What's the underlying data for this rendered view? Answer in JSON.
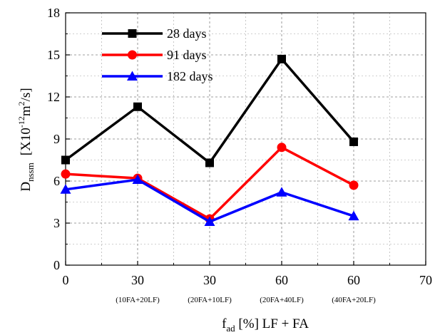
{
  "chart_data": {
    "type": "line",
    "x_tick_labels": [
      "0",
      "30",
      "30",
      "60",
      "60",
      "70"
    ],
    "x_sub_labels": [
      "",
      "(10FA+20LF)",
      "(20FA+10LF)",
      "(20FA+40LF)",
      "(40FA+20LF)",
      ""
    ],
    "x_positions": [
      0,
      1,
      2,
      3,
      4
    ],
    "xlim": [
      0,
      5
    ],
    "ylim": [
      0,
      18
    ],
    "y_ticks": [
      0,
      3,
      6,
      9,
      12,
      15,
      18
    ],
    "grid": true,
    "grid_style": "dashed",
    "legend_position": "top-left",
    "series": [
      {
        "name": "28 days",
        "color": "#000000",
        "marker": "square",
        "values": [
          7.5,
          11.3,
          7.3,
          14.7,
          8.8
        ]
      },
      {
        "name": "91 days",
        "color": "#ff0000",
        "marker": "circle",
        "values": [
          6.5,
          6.2,
          3.3,
          8.4,
          5.7
        ]
      },
      {
        "name": "182 days",
        "color": "#0000ff",
        "marker": "triangle",
        "values": [
          5.4,
          6.1,
          3.1,
          5.2,
          3.5
        ]
      }
    ],
    "ylabel": {
      "symbol": "D",
      "symbol_sub": "nssm",
      "unit_open": "[X10",
      "unit_exp": "-12",
      "unit_mid": "m",
      "unit_exp2": "2",
      "unit_close": "/s]"
    },
    "xlabel": {
      "symbol": "f",
      "symbol_sub": "ad",
      "rest": " [%]  LF + FA"
    }
  }
}
